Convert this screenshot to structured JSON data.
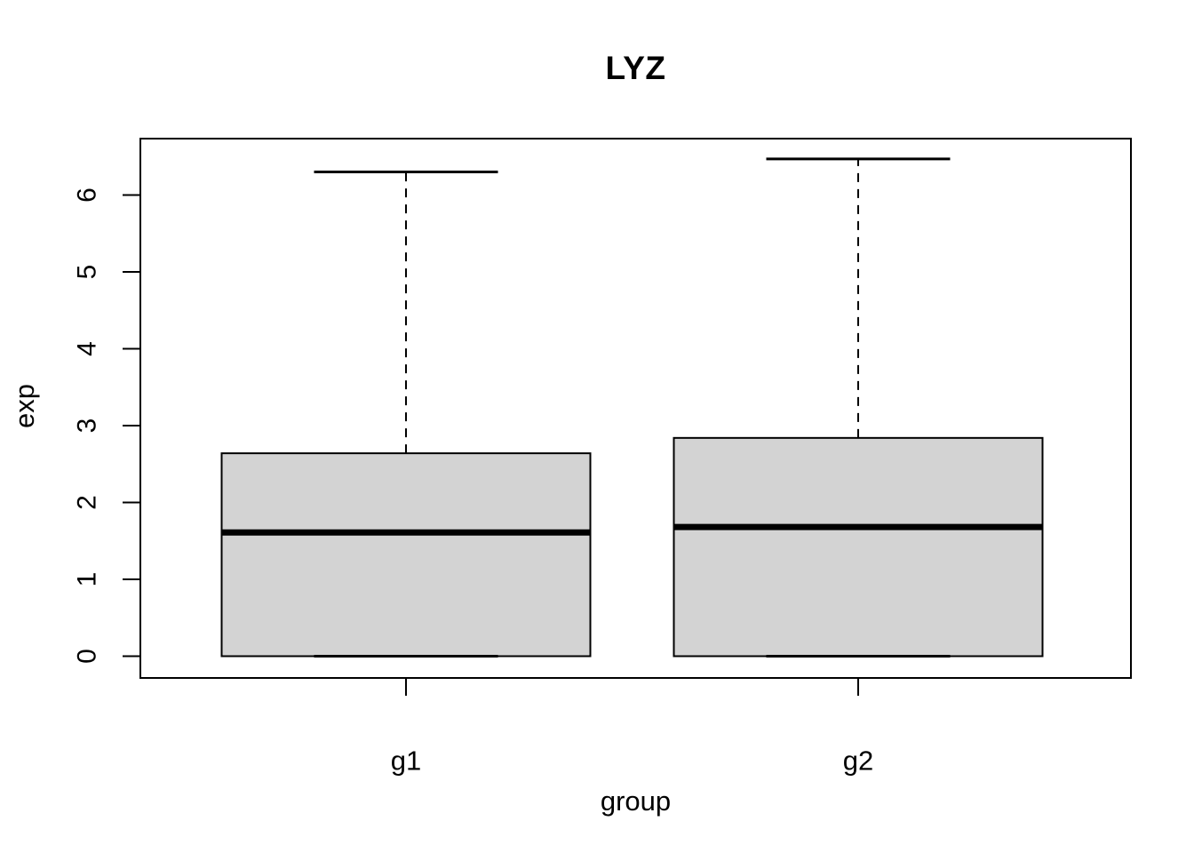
{
  "chart_data": {
    "type": "boxplot",
    "title": "LYZ",
    "xlabel": "group",
    "ylabel": "exp",
    "categories": [
      "g1",
      "g2"
    ],
    "y_ticks": [
      0,
      1,
      2,
      3,
      4,
      5,
      6
    ],
    "ylim": [
      -0.28,
      6.73
    ],
    "series": [
      {
        "name": "g1",
        "min": 0,
        "q1": 0,
        "median": 1.61,
        "q3": 2.64,
        "max": 6.3
      },
      {
        "name": "g2",
        "min": 0,
        "q1": 0,
        "median": 1.68,
        "q3": 2.84,
        "max": 6.47
      }
    ],
    "box_fill": "#d3d3d3",
    "line_color": "#000000",
    "whisker_style": "dashed",
    "grid": false,
    "legend": "none"
  }
}
